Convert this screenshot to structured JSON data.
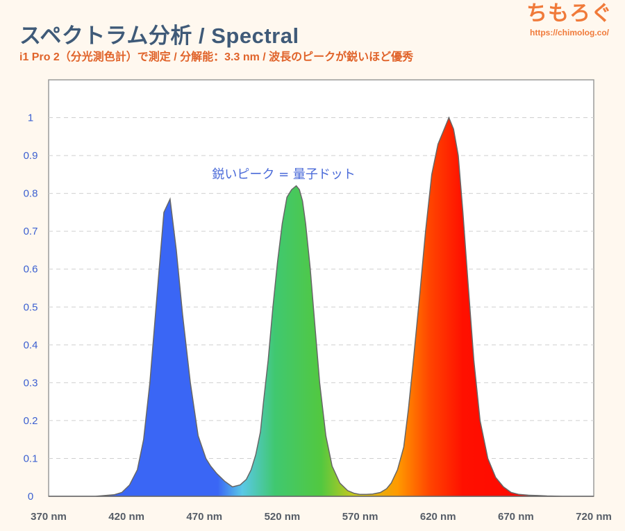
{
  "header": {
    "title": "スペクトラム分析 / Spectral",
    "subtitle": "i1 Pro 2（分光測色計）で測定 / 分解能：3.3 nm / 波長のピークが鋭いほど優秀"
  },
  "logo": {
    "text": "ちもろぐ",
    "url": "https://chimolog.co/"
  },
  "chart_data": {
    "type": "area",
    "x_tick_labels": [
      "370 nm",
      "420 nm",
      "470 nm",
      "520 nm",
      "570 nm",
      "620 nm",
      "670 nm",
      "720 nm"
    ],
    "x_ticks": [
      370,
      420,
      470,
      520,
      570,
      620,
      670,
      720
    ],
    "y_tick_labels": [
      "0",
      "0.1",
      "0.2",
      "0.3",
      "0.4",
      "0.5",
      "0.6",
      "0.7",
      "0.8",
      "0.9",
      "1"
    ],
    "xlim": [
      370,
      720
    ],
    "ylim": [
      0,
      1.1
    ],
    "grid": "horizontal-dashed",
    "annotations": [
      {
        "text": "鋭いピーク = 量子ドット",
        "x": 521,
        "y": 0.84
      }
    ],
    "series": [
      {
        "x": [
          370,
          400,
          412,
          417,
          422,
          427,
          431,
          435,
          438,
          441,
          444,
          448,
          452,
          456,
          461,
          466,
          471,
          474,
          478,
          483,
          488,
          493,
          497,
          500,
          503,
          506,
          508,
          511,
          514,
          517,
          520,
          523,
          526,
          529,
          531,
          533,
          535,
          538,
          541,
          544,
          548,
          552,
          557,
          562,
          566,
          570,
          574,
          578,
          583,
          587,
          590,
          594,
          598,
          601,
          604,
          608,
          612,
          616,
          620,
          624,
          627,
          630,
          633,
          636,
          639,
          643,
          647,
          652,
          657,
          662,
          667,
          672,
          678,
          684,
          690,
          700,
          720
        ],
        "y": [
          0,
          0,
          0.004,
          0.01,
          0.03,
          0.07,
          0.15,
          0.3,
          0.45,
          0.6,
          0.75,
          0.785,
          0.65,
          0.48,
          0.3,
          0.16,
          0.1,
          0.08,
          0.06,
          0.04,
          0.025,
          0.03,
          0.045,
          0.07,
          0.11,
          0.17,
          0.25,
          0.36,
          0.5,
          0.62,
          0.72,
          0.79,
          0.81,
          0.82,
          0.81,
          0.78,
          0.72,
          0.6,
          0.45,
          0.3,
          0.16,
          0.08,
          0.035,
          0.015,
          0.008,
          0.005,
          0.005,
          0.006,
          0.01,
          0.02,
          0.035,
          0.07,
          0.13,
          0.23,
          0.35,
          0.52,
          0.7,
          0.85,
          0.93,
          0.97,
          1.0,
          0.97,
          0.9,
          0.75,
          0.58,
          0.36,
          0.2,
          0.1,
          0.05,
          0.025,
          0.01,
          0.005,
          0.003,
          0.002,
          0.001,
          0,
          0
        ]
      }
    ]
  }
}
